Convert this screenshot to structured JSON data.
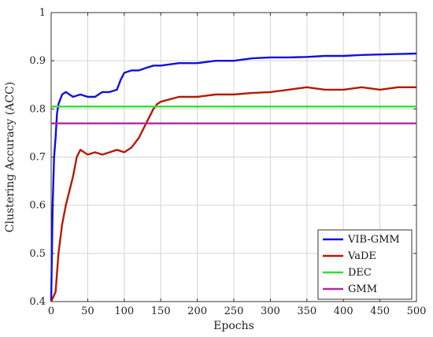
{
  "chart_data": {
    "type": "line",
    "title": "",
    "xlabel": "Epochs",
    "ylabel": "Clustering Accuracy (ACC)",
    "xlim": [
      0,
      500
    ],
    "ylim": [
      0.4,
      1.0
    ],
    "xticks": [
      0,
      50,
      100,
      150,
      200,
      250,
      300,
      350,
      400,
      450,
      500
    ],
    "yticks": [
      0.4,
      0.5,
      0.6,
      0.7,
      0.8,
      0.9,
      1.0
    ],
    "ytick_labels": [
      "0.4",
      "0.5",
      "0.6",
      "0.7",
      "0.8",
      "0.9",
      "1"
    ],
    "grid": true,
    "legend_position": "bottom-right",
    "series": [
      {
        "name": "VIB-GMM",
        "color": "#1010e0",
        "x": [
          0,
          2,
          4,
          6,
          8,
          10,
          15,
          20,
          30,
          40,
          50,
          60,
          70,
          80,
          90,
          95,
          100,
          110,
          120,
          130,
          140,
          150,
          175,
          200,
          225,
          250,
          275,
          300,
          325,
          350,
          375,
          400,
          425,
          450,
          475,
          500
        ],
        "y": [
          0.4,
          0.6,
          0.7,
          0.74,
          0.79,
          0.81,
          0.83,
          0.835,
          0.825,
          0.83,
          0.825,
          0.825,
          0.835,
          0.835,
          0.84,
          0.86,
          0.875,
          0.88,
          0.88,
          0.885,
          0.89,
          0.89,
          0.895,
          0.895,
          0.9,
          0.9,
          0.905,
          0.907,
          0.907,
          0.908,
          0.91,
          0.91,
          0.912,
          0.913,
          0.914,
          0.915
        ]
      },
      {
        "name": "VaDE",
        "color": "#b51a00",
        "x": [
          0,
          3,
          6,
          10,
          15,
          20,
          25,
          30,
          35,
          40,
          50,
          60,
          70,
          80,
          90,
          100,
          110,
          120,
          130,
          140,
          145,
          150,
          175,
          200,
          225,
          250,
          275,
          300,
          325,
          350,
          375,
          400,
          425,
          450,
          475,
          500
        ],
        "y": [
          0.4,
          0.41,
          0.42,
          0.5,
          0.56,
          0.6,
          0.63,
          0.66,
          0.7,
          0.715,
          0.705,
          0.71,
          0.705,
          0.71,
          0.715,
          0.71,
          0.72,
          0.74,
          0.77,
          0.8,
          0.81,
          0.815,
          0.825,
          0.825,
          0.83,
          0.83,
          0.833,
          0.835,
          0.84,
          0.845,
          0.84,
          0.84,
          0.845,
          0.84,
          0.845,
          0.845
        ]
      },
      {
        "name": "DEC",
        "color": "#33dd33",
        "x": [
          0,
          500
        ],
        "y": [
          0.805,
          0.805
        ]
      },
      {
        "name": "GMM",
        "color": "#b02aa3",
        "x": [
          0,
          500
        ],
        "y": [
          0.77,
          0.77
        ]
      }
    ]
  }
}
